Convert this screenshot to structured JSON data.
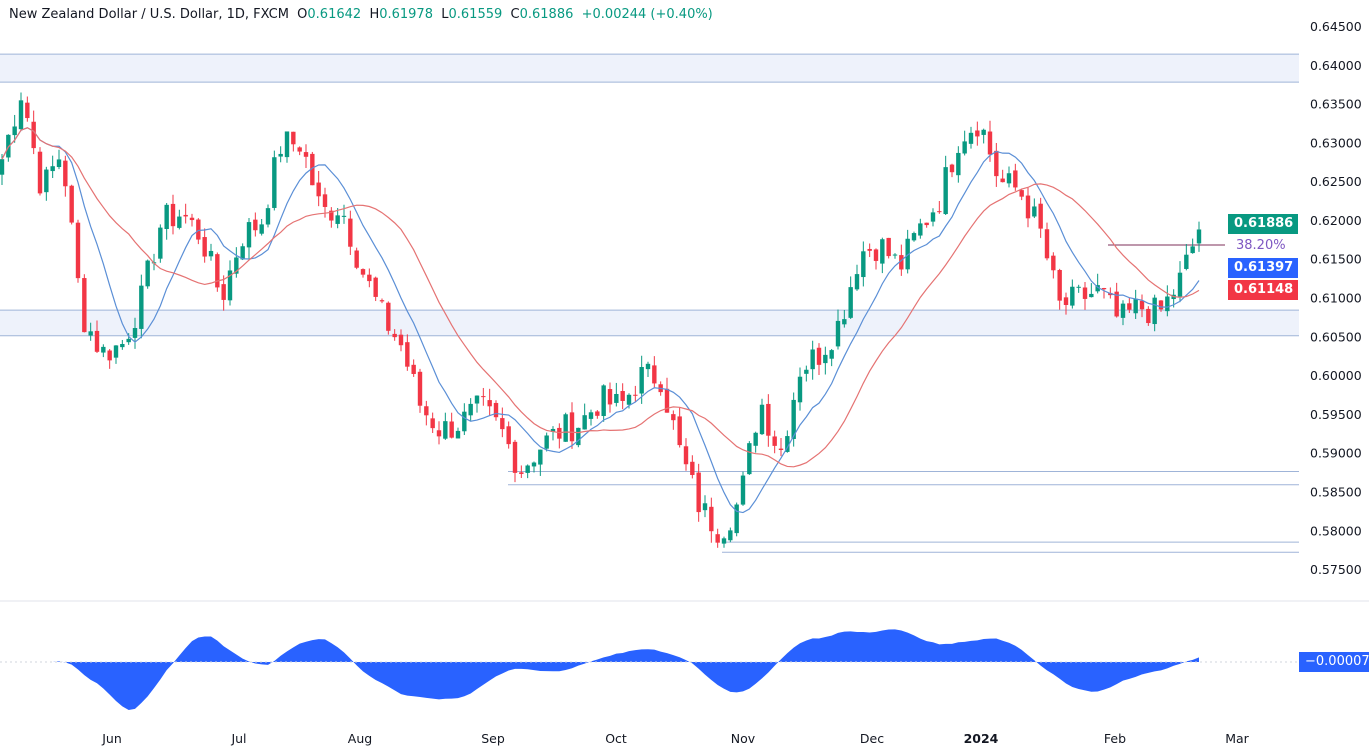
{
  "header": {
    "symbol": "New Zealand Dollar / U.S. Dollar, 1D, FXCM",
    "o_label": "O",
    "open": "0.61642",
    "h_label": "H",
    "high": "0.61978",
    "l_label": "L",
    "low": "0.61559",
    "c_label": "C",
    "close": "0.61886",
    "change": "+0.00244 (+0.40%)"
  },
  "chart_data": {
    "type": "candlestick",
    "ylim": [
      0.575,
      0.645
    ],
    "yticks": [
      "0.64500",
      "0.64000",
      "0.63500",
      "0.63000",
      "0.62500",
      "0.62000",
      "0.61500",
      "0.61000",
      "0.60500",
      "0.60000",
      "0.59500",
      "0.59000",
      "0.58500",
      "0.58000",
      "0.57500"
    ],
    "xticks": [
      "Jun",
      "Jul",
      "Aug",
      "Sep",
      "Oct",
      "Nov",
      "Dec",
      "2024",
      "Feb",
      "Mar"
    ],
    "approx_closes": [
      0.628,
      0.637,
      0.624,
      0.629,
      0.608,
      0.603,
      0.604,
      0.61,
      0.62,
      0.621,
      0.618,
      0.61,
      0.618,
      0.62,
      0.63,
      0.63,
      0.621,
      0.622,
      0.614,
      0.608,
      0.604,
      0.596,
      0.593,
      0.594,
      0.596,
      0.593,
      0.588,
      0.591,
      0.593,
      0.594,
      0.597,
      0.596,
      0.6,
      0.6,
      0.59,
      0.583,
      0.58,
      0.584,
      0.597,
      0.59,
      0.601,
      0.603,
      0.607,
      0.616,
      0.617,
      0.614,
      0.619,
      0.623,
      0.631,
      0.633,
      0.625,
      0.624,
      0.619,
      0.609,
      0.61,
      0.611,
      0.607,
      0.609,
      0.608,
      0.612,
      0.6189
    ],
    "horizontal_levels": [
      0.6415,
      0.6379,
      0.6085,
      0.6052,
      0.5877,
      0.586,
      0.5786,
      0.5773
    ],
    "fib_level": {
      "label": "38.20%",
      "price": 0.6169
    },
    "price_tags": [
      {
        "value": "0.61886",
        "color": "#089981"
      },
      {
        "value": "0.61397",
        "color": "#2962ff"
      },
      {
        "value": "0.61148",
        "color": "#f23645"
      }
    ],
    "oscillator": {
      "last_value": "−0.00007",
      "color": "#2962ff"
    },
    "colors": {
      "up": "#089981",
      "down": "#f23645",
      "ma_fast": "#5b8fd6",
      "ma_slow": "#e57373",
      "level": "#9fb4d8"
    }
  }
}
